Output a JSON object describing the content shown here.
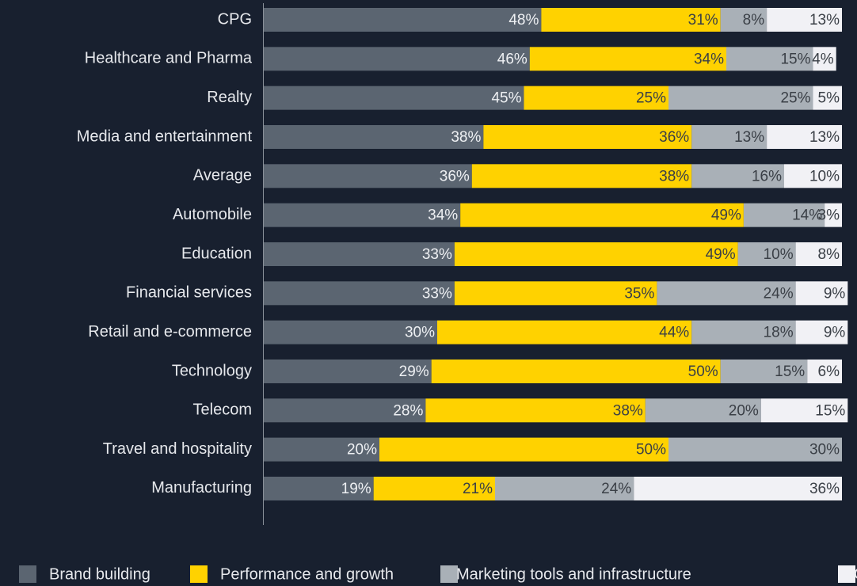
{
  "chart_data": {
    "type": "bar",
    "orientation": "horizontal",
    "stacked": true,
    "categories": [
      "CPG",
      "Healthcare and Pharma",
      "Realty",
      "Media and entertainment",
      "Average",
      "Automobile",
      "Education",
      "Financial services",
      "Retail and e-commerce",
      "Technology",
      "Telecom",
      "Travel and hospitality",
      "Manufacturing"
    ],
    "xlim": [
      0,
      100
    ],
    "series": [
      {
        "name": "Brand building",
        "color": "#5b6571",
        "label_color": "#eef0f3",
        "values": [
          48,
          46,
          45,
          38,
          36,
          34,
          33,
          33,
          30,
          29,
          28,
          20,
          19
        ],
        "value_labels": [
          "48%",
          "46%",
          "45%",
          "38%",
          "36%",
          "34%",
          "33%",
          "33%",
          "30%",
          "29%",
          "28%",
          "20%",
          "19%"
        ]
      },
      {
        "name": "Performance and growth",
        "color": "#ffd200",
        "label_color": "#3a3f46",
        "values": [
          31,
          34,
          25,
          36,
          38,
          49,
          49,
          35,
          44,
          50,
          38,
          50,
          21
        ],
        "value_labels": [
          "31%",
          "34%",
          "25%",
          "36%",
          "38%",
          "49%",
          "49%",
          "35%",
          "44%",
          "50%",
          "38%",
          "50%",
          "21%"
        ]
      },
      {
        "name": "Marketing tools and infrastructure",
        "color": "#a9b0b7",
        "label_color": "#3a3f46",
        "values": [
          8,
          15,
          25,
          13,
          16,
          14,
          10,
          24,
          18,
          15,
          20,
          30,
          24
        ],
        "value_labels": [
          "8%",
          "15%",
          "25%",
          "13%",
          "16%",
          "14%",
          "10%",
          "24%",
          "18%",
          "15%",
          "20%",
          "30%",
          "24%"
        ]
      },
      {
        "name": "Other",
        "color": "#f1f1f5",
        "label_color": "#3a3f46",
        "values": [
          13,
          4,
          5,
          13,
          10,
          3,
          8,
          9,
          9,
          6,
          15,
          null,
          36
        ],
        "value_labels": [
          "13%",
          "4%",
          "5%",
          "13%",
          "10%",
          "3%",
          "8%",
          "9%",
          "9%",
          "6%",
          "15%",
          null,
          "36%"
        ]
      }
    ]
  }
}
